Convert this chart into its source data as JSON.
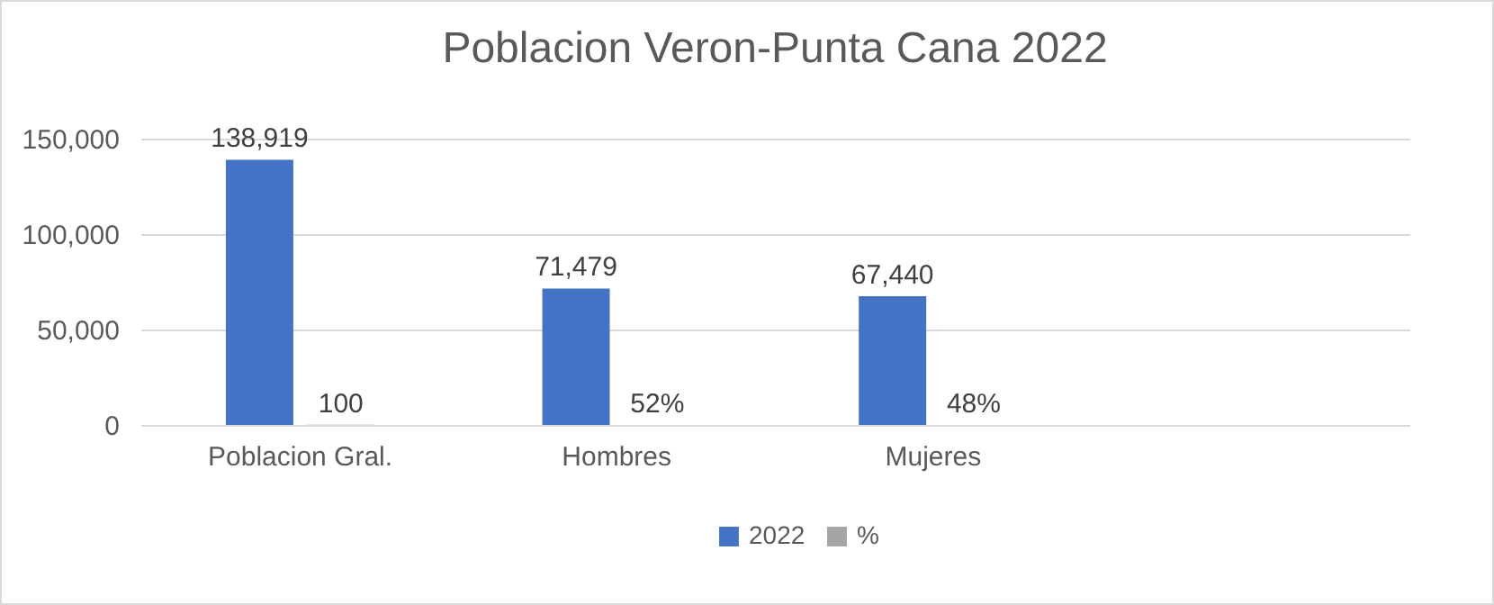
{
  "chart_data": {
    "type": "bar",
    "title": "Poblacion Veron-Punta Cana 2022",
    "categories": [
      "Poblacion Gral.",
      "Hombres",
      "Mujeres",
      null
    ],
    "series": [
      {
        "name": "2022",
        "color": "#4472c4",
        "values": [
          138919,
          71479,
          67440,
          null
        ],
        "value_labels": [
          "138,919",
          "71,479",
          "67,440",
          null
        ]
      },
      {
        "name": "%",
        "color": "#a5a5a5",
        "values": [
          100,
          52,
          48,
          null
        ],
        "value_labels": [
          "100",
          "52%",
          "48%",
          null
        ]
      }
    ],
    "ylim": [
      0,
      150000
    ],
    "yticks": [
      {
        "value": 0,
        "label": "0"
      },
      {
        "value": 50000,
        "label": "50,000"
      },
      {
        "value": 100000,
        "label": "100,000"
      },
      {
        "value": 150000,
        "label": "150,000"
      }
    ],
    "grid": "y",
    "legend": "bottom"
  }
}
